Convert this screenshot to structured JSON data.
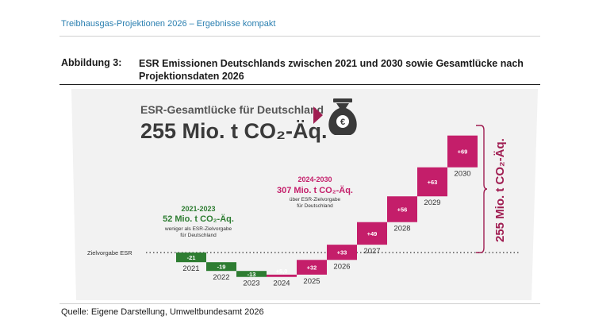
{
  "header": {
    "running_title": "Treibhausgas-Projektionen 2026 – Ergebnisse kompakt"
  },
  "figure": {
    "label": "Abbildung 3:",
    "caption": "ESR Emissionen Deutschlands zwischen 2021 und 2030 sowie Gesamtlücke nach Projektionsdaten 2026",
    "source": "Quelle: Eigene Darstellung, Umweltbundesamt 2026"
  },
  "chart_data": {
    "type": "bar",
    "title": "ESR-Gesamtlücke für Deutschland",
    "subtitle": "255 Mio. t CO₂-Äq.",
    "reference_line": "Zielvorgabe ESR",
    "categories": [
      "2021",
      "2022",
      "2023",
      "2024",
      "2025",
      "2026",
      "2027",
      "2028",
      "2029",
      "2030"
    ],
    "values": [
      -21,
      -19,
      -13,
      5,
      32,
      33,
      49,
      56,
      63,
      69
    ],
    "value_labels": [
      "-21",
      "-19",
      "-13",
      "+5,0",
      "+32",
      "+33",
      "+49",
      "+56",
      "+63",
      "+69"
    ],
    "cumulative_total_label": "255 Mio. t CO₂-Äq.",
    "colors": {
      "negative": "#2e7d32",
      "positive": "#c41e6a",
      "total_bracket": "#a01e52",
      "background": "#f2f2f2"
    },
    "annotations": [
      {
        "period": "2021-2023",
        "value": "52 Mio. t CO₂-Äq.",
        "lines": [
          "weniger als ESR-Zielvorgabe",
          "für Deutschland"
        ],
        "color": "#2e7d32"
      },
      {
        "period": "2024-2030",
        "value": "307 Mio. t CO₂-Äq.",
        "lines": [
          "über ESR-Zielvorgabe",
          "für Deutschland"
        ],
        "color": "#c41e6a"
      }
    ],
    "icon": "money-bag-euro-icon"
  }
}
